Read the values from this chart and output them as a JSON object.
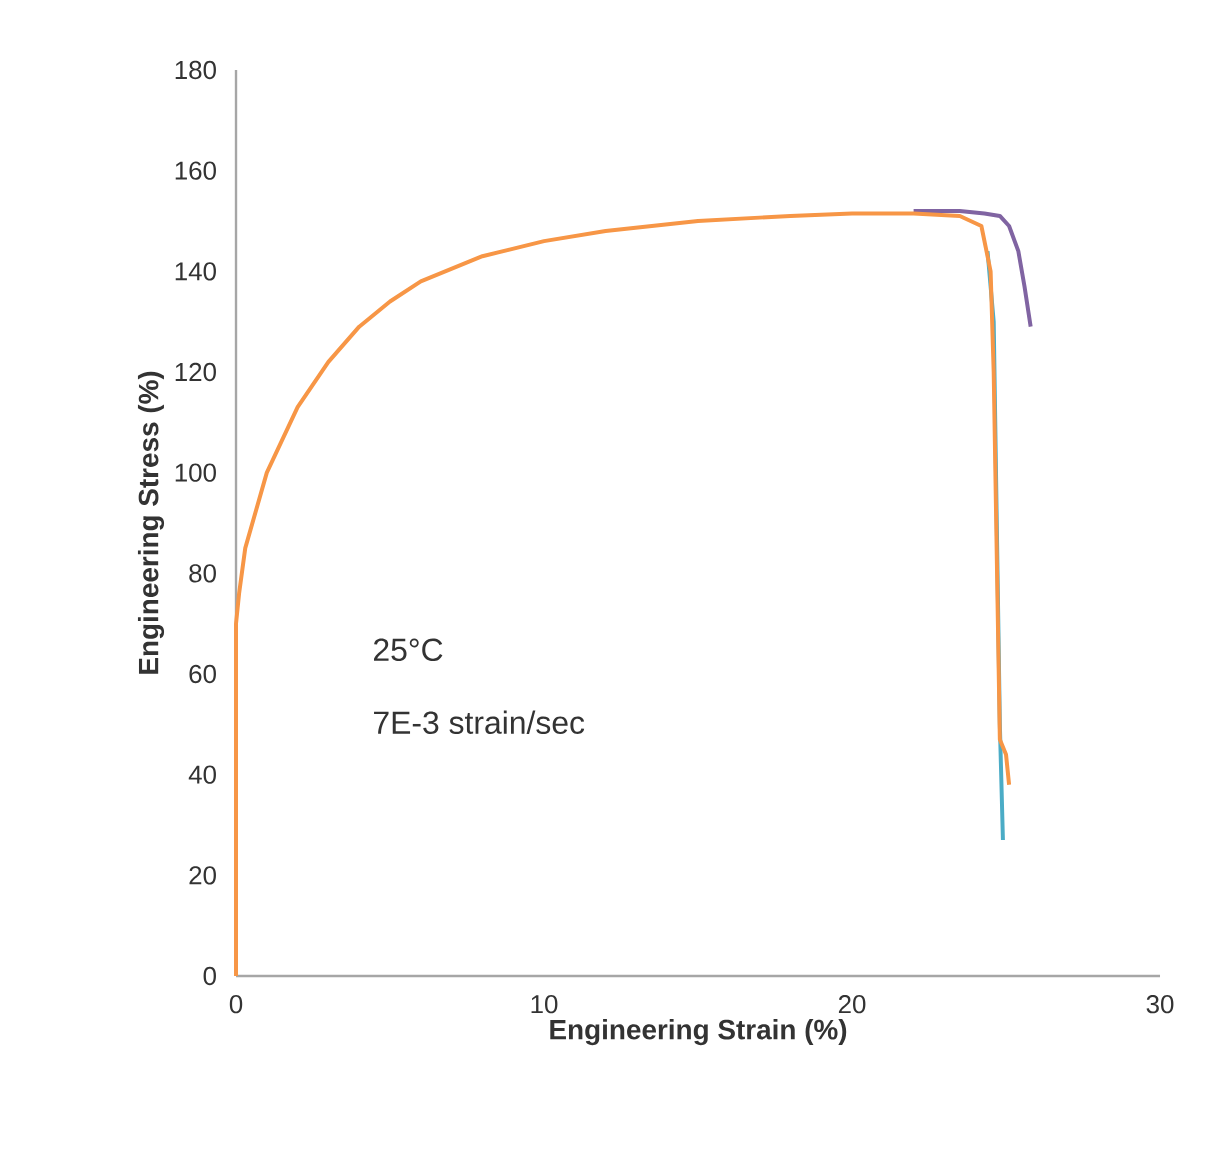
{
  "chart_data": {
    "type": "line",
    "xlabel": "Engineering Strain (%)",
    "ylabel": "Engineering Stress (%)",
    "xlim": [
      0,
      30
    ],
    "ylim": [
      0,
      180
    ],
    "xticks": [
      0,
      10,
      20,
      30
    ],
    "yticks": [
      0,
      20,
      40,
      60,
      80,
      100,
      120,
      140,
      160,
      180
    ],
    "grid": false,
    "marker": "none",
    "line_style": "solid",
    "annotations": [
      "25°C",
      "7E-3 strain/sec"
    ],
    "series": [
      {
        "color": "#8064a2",
        "x": [
          22,
          23.5,
          24.3,
          24.8,
          25.1,
          25.4,
          25.6,
          25.8
        ],
        "values": [
          152,
          152,
          151.5,
          151,
          149,
          144,
          137,
          129
        ]
      },
      {
        "color": "#4bacc6",
        "x": [
          24.4,
          24.6,
          24.7,
          24.8,
          24.9
        ],
        "values": [
          144,
          130,
          90,
          50,
          27
        ]
      },
      {
        "color": "#f79646",
        "x": [
          0,
          0,
          0.1,
          0.3,
          1,
          2,
          3,
          4,
          5,
          6,
          8,
          10,
          12,
          15,
          18,
          20,
          22,
          23.5,
          24.2,
          24.5,
          24.6,
          24.8,
          25.0,
          25.1
        ],
        "values": [
          0,
          70,
          76,
          85,
          100,
          113,
          122,
          129,
          134,
          138,
          143,
          146,
          148,
          150,
          151,
          151.5,
          151.5,
          151,
          149,
          140,
          120,
          47,
          44,
          38
        ]
      }
    ]
  }
}
